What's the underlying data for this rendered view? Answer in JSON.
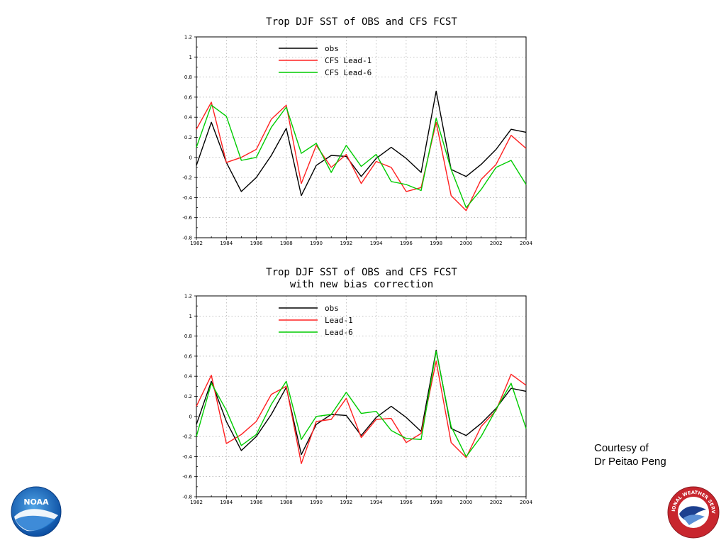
{
  "credit": {
    "line1": "Courtesy of",
    "line2": "Dr Peitao Peng"
  },
  "logos": {
    "noaa": {
      "text": "NOAA",
      "icon": "noaa-logo-icon"
    },
    "nws": {
      "text": "NATIONAL WEATHER SERVICE",
      "icon": "nws-logo-icon"
    }
  },
  "chart_data": [
    {
      "type": "line",
      "title": [
        "Trop DJF SST of OBS and CFS FCST"
      ],
      "xlabel": "",
      "ylabel": "",
      "xlim": [
        1982,
        2004
      ],
      "ylim": [
        -0.8,
        1.2
      ],
      "x_ticks": [
        1982,
        1984,
        1986,
        1988,
        1990,
        1992,
        1994,
        1996,
        1998,
        2000,
        2002,
        2004
      ],
      "y_ticks": [
        -0.8,
        -0.6,
        -0.4,
        -0.2,
        0,
        0.2,
        0.4,
        0.6,
        0.8,
        1,
        1.2
      ],
      "y_tick_labels": [
        "-0.8",
        "-0.6",
        "-0.4",
        "-0.2",
        "0",
        "0.2",
        "0.4",
        "0.6",
        "0.8",
        "1",
        "1.2"
      ],
      "grid": true,
      "legend": "top-center",
      "x": [
        1982,
        1983,
        1984,
        1985,
        1986,
        1987,
        1988,
        1989,
        1990,
        1991,
        1992,
        1993,
        1994,
        1995,
        1996,
        1997,
        1998,
        1999,
        2000,
        2001,
        2002,
        2003,
        2004
      ],
      "series": [
        {
          "name": "obs",
          "color": "#000000",
          "values": [
            -0.08,
            0.35,
            -0.05,
            -0.34,
            -0.2,
            0.02,
            0.29,
            -0.38,
            -0.08,
            0.02,
            0.01,
            -0.19,
            -0.01,
            0.1,
            -0.01,
            -0.15,
            0.66,
            -0.12,
            -0.19,
            -0.07,
            0.08,
            0.28,
            0.25
          ]
        },
        {
          "name": "CFS Lead-1",
          "color": "#ff2020",
          "values": [
            0.28,
            0.55,
            -0.05,
            0.0,
            0.08,
            0.38,
            0.52,
            -0.26,
            0.12,
            -0.1,
            0.03,
            -0.26,
            -0.04,
            -0.1,
            -0.34,
            -0.3,
            0.35,
            -0.38,
            -0.53,
            -0.22,
            -0.07,
            0.22,
            0.09
          ]
        },
        {
          "name": "CFS Lead-6",
          "color": "#00cc00",
          "values": [
            0.1,
            0.52,
            0.41,
            -0.03,
            0.0,
            0.3,
            0.5,
            0.04,
            0.14,
            -0.15,
            0.12,
            -0.09,
            0.03,
            -0.24,
            -0.27,
            -0.33,
            0.39,
            -0.12,
            -0.5,
            -0.32,
            -0.1,
            -0.03,
            -0.27
          ]
        }
      ]
    },
    {
      "type": "line",
      "title": [
        "Trop DJF SST of OBS and CFS FCST",
        "with new bias correction"
      ],
      "xlabel": "",
      "ylabel": "",
      "xlim": [
        1982,
        2004
      ],
      "ylim": [
        -0.8,
        1.2
      ],
      "x_ticks": [
        1982,
        1984,
        1986,
        1988,
        1990,
        1992,
        1994,
        1996,
        1998,
        2000,
        2002,
        2004
      ],
      "y_ticks": [
        -0.8,
        -0.6,
        -0.4,
        -0.2,
        0,
        0.2,
        0.4,
        0.6,
        0.8,
        1,
        1.2
      ],
      "y_tick_labels": [
        "-0.8",
        "-0.6",
        "-0.4",
        "-0.2",
        "0",
        "0.2",
        "0.4",
        "0.6",
        "0.8",
        "1",
        "1.2"
      ],
      "grid": true,
      "legend": "top-center",
      "x": [
        1982,
        1983,
        1984,
        1985,
        1986,
        1987,
        1988,
        1989,
        1990,
        1991,
        1992,
        1993,
        1994,
        1995,
        1996,
        1997,
        1998,
        1999,
        2000,
        2001,
        2002,
        2003,
        2004
      ],
      "series": [
        {
          "name": "obs",
          "color": "#000000",
          "values": [
            -0.08,
            0.35,
            -0.05,
            -0.34,
            -0.2,
            0.02,
            0.29,
            -0.38,
            -0.08,
            0.02,
            0.01,
            -0.19,
            -0.01,
            0.1,
            -0.01,
            -0.15,
            0.66,
            -0.12,
            -0.19,
            -0.07,
            0.08,
            0.28,
            0.25
          ]
        },
        {
          "name": "Lead-1",
          "color": "#ff2020",
          "values": [
            0.1,
            0.41,
            -0.27,
            -0.18,
            -0.05,
            0.22,
            0.3,
            -0.47,
            -0.05,
            -0.03,
            0.18,
            -0.21,
            -0.03,
            -0.02,
            -0.26,
            -0.17,
            0.55,
            -0.26,
            -0.41,
            -0.1,
            0.06,
            0.42,
            0.31
          ]
        },
        {
          "name": "Lead-6",
          "color": "#00cc00",
          "values": [
            -0.2,
            0.33,
            0.06,
            -0.29,
            -0.18,
            0.12,
            0.35,
            -0.23,
            -0.0,
            0.02,
            0.24,
            0.03,
            0.05,
            -0.14,
            -0.22,
            -0.23,
            0.65,
            -0.1,
            -0.4,
            -0.2,
            0.07,
            0.33,
            -0.12
          ]
        }
      ]
    }
  ]
}
